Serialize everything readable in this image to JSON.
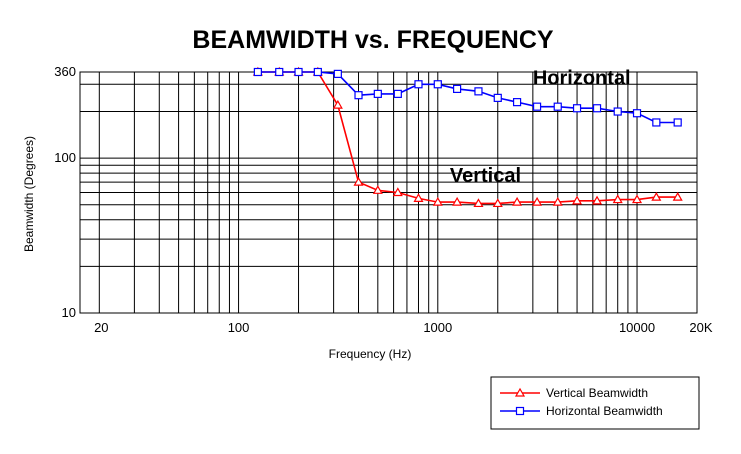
{
  "chart_data": {
    "type": "line",
    "title": "BEAMWIDTH vs. FREQUENCY",
    "xlabel": "Frequency (Hz)",
    "ylabel": "Beamwidth (Degrees)",
    "x_scale": "log",
    "y_scale": "log",
    "xlim": [
      20,
      20000
    ],
    "ylim": [
      10,
      360
    ],
    "x_ticks": [
      {
        "value": 20,
        "label": "20"
      },
      {
        "value": 100,
        "label": "100"
      },
      {
        "value": 1000,
        "label": "1000"
      },
      {
        "value": 10000,
        "label": "10000"
      },
      {
        "value": 20000,
        "label": "20K"
      }
    ],
    "y_ticks": [
      {
        "value": 10,
        "label": "10"
      },
      {
        "value": 100,
        "label": "100"
      },
      {
        "value": 360,
        "label": "360"
      }
    ],
    "grid": true,
    "legend_position": "bottom-right",
    "annotations": [
      {
        "text": "Horizontal",
        "x": 3000,
        "y": 300
      },
      {
        "text": "Vertical",
        "x": 1150,
        "y": 70
      }
    ],
    "series": [
      {
        "name": "Vertical Beamwidth",
        "color": "#ff0000",
        "marker": "triangle",
        "x": [
          125,
          160,
          200,
          250,
          315,
          400,
          500,
          630,
          800,
          1000,
          1250,
          1600,
          2000,
          2500,
          3150,
          4000,
          5000,
          6300,
          8000,
          10000,
          12500,
          16000
        ],
        "y": [
          360,
          360,
          360,
          360,
          220,
          70,
          62,
          60,
          55,
          52,
          52,
          51,
          51,
          52,
          52,
          52,
          53,
          53,
          54,
          54,
          56,
          56
        ]
      },
      {
        "name": "Horizontal Beamwidth",
        "color": "#0000ff",
        "marker": "square",
        "x": [
          125,
          160,
          200,
          250,
          315,
          400,
          500,
          630,
          800,
          1000,
          1250,
          1600,
          2000,
          2500,
          3150,
          4000,
          5000,
          6300,
          8000,
          10000,
          12500,
          16000
        ],
        "y": [
          360,
          360,
          360,
          360,
          350,
          255,
          260,
          260,
          300,
          300,
          280,
          270,
          245,
          230,
          215,
          215,
          210,
          210,
          200,
          195,
          170,
          170
        ]
      }
    ]
  }
}
